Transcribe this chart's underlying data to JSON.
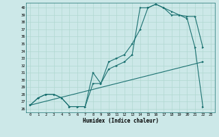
{
  "xlabel": "Humidex (Indice chaleur)",
  "bg_color": "#cce8e8",
  "line_color": "#1a7070",
  "grid_color": "#b0d8d0",
  "xlim": [
    -0.5,
    23.5
  ],
  "ylim": [
    25.5,
    40.7
  ],
  "xticks": [
    0,
    1,
    2,
    3,
    4,
    5,
    6,
    7,
    8,
    9,
    10,
    11,
    12,
    13,
    14,
    15,
    16,
    17,
    18,
    19,
    20,
    21,
    22,
    23
  ],
  "yticks": [
    26,
    27,
    28,
    29,
    30,
    31,
    32,
    33,
    34,
    35,
    36,
    37,
    38,
    39,
    40
  ],
  "line1_x": [
    0,
    1,
    2,
    3,
    4,
    5,
    6,
    7,
    8,
    9,
    10,
    11,
    12,
    13,
    14,
    15,
    16,
    17,
    18,
    19,
    20,
    21,
    22
  ],
  "line1_y": [
    26.5,
    27.5,
    28.0,
    28.0,
    27.5,
    26.3,
    26.3,
    26.3,
    31.0,
    29.5,
    32.5,
    33.0,
    33.5,
    35.0,
    37.0,
    40.0,
    40.5,
    40.0,
    39.0,
    39.0,
    38.8,
    38.8,
    34.5
  ],
  "line2_x": [
    0,
    1,
    2,
    3,
    4,
    5,
    6,
    7,
    8,
    9,
    10,
    11,
    12,
    13,
    14,
    15,
    16,
    17,
    18,
    19,
    20,
    21,
    22
  ],
  "line2_y": [
    26.5,
    27.5,
    28.0,
    28.0,
    27.5,
    26.3,
    26.3,
    26.3,
    29.5,
    29.5,
    31.5,
    32.0,
    32.5,
    33.5,
    40.0,
    40.0,
    40.5,
    40.0,
    39.5,
    39.0,
    38.5,
    34.5,
    26.3
  ],
  "line3_x": [
    0,
    22
  ],
  "line3_y": [
    26.5,
    32.5
  ]
}
